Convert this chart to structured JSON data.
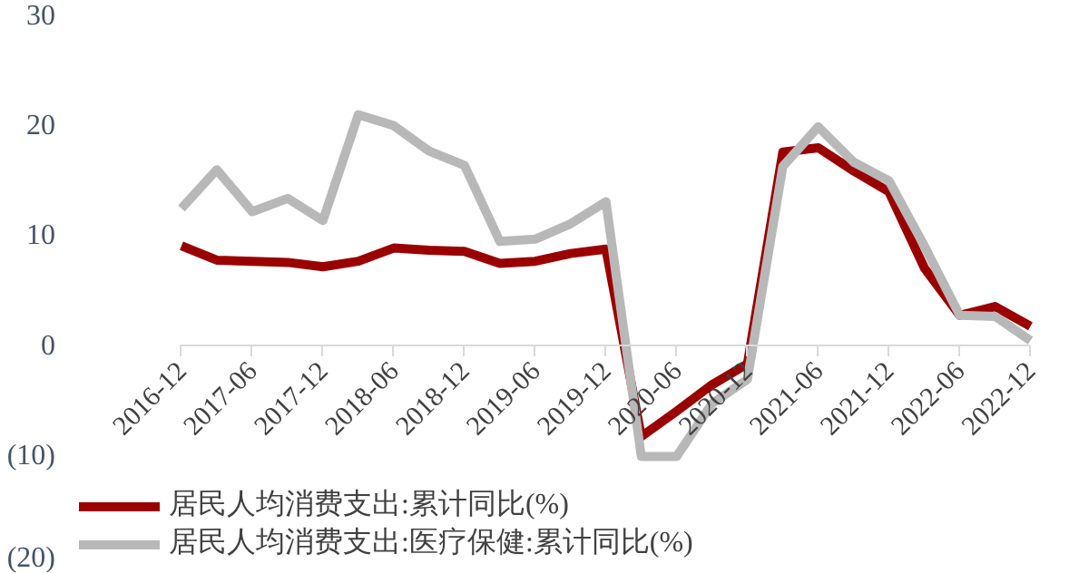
{
  "chart_data": {
    "type": "line",
    "categories": [
      "2016-12",
      null,
      "2017-06",
      null,
      "2017-12",
      null,
      "2018-06",
      null,
      "2018-12",
      null,
      "2019-06",
      null,
      "2019-12",
      null,
      "2020-06",
      null,
      "2020-12",
      null,
      "2021-06",
      null,
      "2021-12",
      null,
      "2022-06",
      null,
      "2022-12"
    ],
    "series": [
      {
        "name": "居民人均消费支出:累计同比(%)",
        "color": "#9b0000",
        "values": [
          9.1,
          7.8,
          7.7,
          7.6,
          7.2,
          7.7,
          8.9,
          8.7,
          8.6,
          7.5,
          7.7,
          8.4,
          8.8,
          -8.2,
          -5.9,
          -3.5,
          -1.6,
          17.6,
          18.0,
          15.9,
          14.0,
          7.1,
          2.8,
          3.6,
          1.8
        ]
      },
      {
        "name": "居民人均消费支出:医疗保健:累计同比(%)",
        "color": "#b8b8b8",
        "values": [
          12.5,
          16.0,
          12.2,
          13.4,
          11.4,
          21.0,
          20.0,
          17.7,
          16.4,
          9.5,
          9.7,
          11.1,
          13.1,
          -10.0,
          -10.0,
          -5.2,
          -3.0,
          16.3,
          19.9,
          16.7,
          15.0,
          9.1,
          2.8,
          2.7,
          0.5
        ]
      }
    ],
    "ylim": [
      -20,
      30
    ],
    "yticks": [
      {
        "value": -20,
        "label": "(20)"
      },
      {
        "value": -10,
        "label": "(10)"
      },
      0,
      10,
      20,
      30
    ],
    "grid": false,
    "legend": "bottom left",
    "line_style": "solid"
  }
}
